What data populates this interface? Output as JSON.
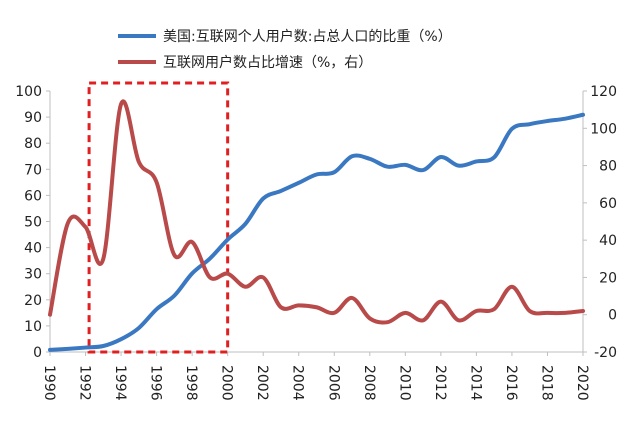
{
  "chart_data": {
    "type": "line",
    "title": "",
    "xlabel": "",
    "ylabel_left": "",
    "ylabel_right": "",
    "xlim": [
      1990,
      2020
    ],
    "ylim_left": [
      0,
      100
    ],
    "ylim_right": [
      -20,
      120
    ],
    "left_ticks": [
      "0",
      "10",
      "20",
      "30",
      "40",
      "50",
      "60",
      "70",
      "80",
      "90",
      "100"
    ],
    "right_ticks": [
      "-20",
      "0",
      "20",
      "40",
      "60",
      "80",
      "100",
      "120"
    ],
    "x_ticks": [
      "1990",
      "1992",
      "1994",
      "1996",
      "1998",
      "2000",
      "2002",
      "2004",
      "2006",
      "2008",
      "2010",
      "2012",
      "2014",
      "2016",
      "2018",
      "2020"
    ],
    "legend": [
      {
        "label": "美国:互联网个人用户数:占总人口的比重（%）",
        "color": "#3b78c2"
      },
      {
        "label": "互联网用户数占比增速（%，右）",
        "color": "#b94a4a"
      }
    ],
    "series": [
      {
        "name": "美国:互联网个人用户数:占总人口的比重（%）",
        "axis": "left",
        "color": "#3b78c2",
        "x": [
          1990,
          1991,
          1992,
          1993,
          1994,
          1995,
          1996,
          1997,
          1998,
          1999,
          2000,
          2001,
          2002,
          2003,
          2004,
          2005,
          2006,
          2007,
          2008,
          2009,
          2010,
          2011,
          2012,
          2013,
          2014,
          2015,
          2016,
          2017,
          2018,
          2019,
          2020
        ],
        "values": [
          0.8,
          1.2,
          1.7,
          2.3,
          4.9,
          9.2,
          16.4,
          21.6,
          30.1,
          35.8,
          43.1,
          49.1,
          58.8,
          61.7,
          64.8,
          68.0,
          68.9,
          75.0,
          74.0,
          71.0,
          71.7,
          69.7,
          74.7,
          71.4,
          73.0,
          74.6,
          85.5,
          87.3,
          88.5,
          89.4,
          90.9
        ]
      },
      {
        "name": "互联网用户数占比增速（%，右）",
        "axis": "right",
        "color": "#b94a4a",
        "x": [
          1990,
          1991,
          1992,
          1993,
          1994,
          1995,
          1996,
          1997,
          1998,
          1999,
          2000,
          2001,
          2002,
          2003,
          2004,
          2005,
          2006,
          2007,
          2008,
          2009,
          2010,
          2011,
          2012,
          2013,
          2014,
          2015,
          2016,
          2017,
          2018,
          2019,
          2020
        ],
        "values": [
          0,
          49,
          47,
          30,
          113,
          82,
          71,
          32,
          39,
          20,
          22,
          15,
          20,
          4,
          5,
          4,
          1,
          9,
          -2,
          -4,
          1,
          -3,
          7,
          -3,
          2,
          3,
          15,
          2,
          1,
          1,
          2
        ]
      }
    ],
    "highlight": {
      "label": "red dashed box",
      "x_range": [
        1992.2,
        2000
      ],
      "y_range": [
        -20,
        120
      ],
      "axis": "right",
      "color": "#e02020"
    }
  }
}
